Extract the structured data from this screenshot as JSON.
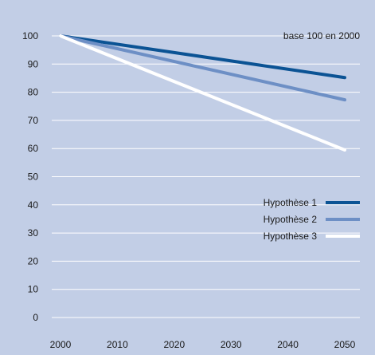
{
  "chart_data": {
    "type": "line",
    "annotation": "base 100 en 2000",
    "x": [
      2000,
      2050
    ],
    "x_ticks": [
      "2000",
      "2010",
      "2020",
      "2030",
      "2040",
      "2050"
    ],
    "y_ticks": [
      "0",
      "10",
      "20",
      "30",
      "40",
      "50",
      "60",
      "70",
      "80",
      "90",
      "100"
    ],
    "xlim": [
      2000,
      2050
    ],
    "ylim": [
      0,
      100
    ],
    "grid": true,
    "legend_position": "right",
    "series": [
      {
        "name": "Hypothèse 1",
        "values": [
          100,
          85.2
        ],
        "color": "#0b5394"
      },
      {
        "name": "Hypothèse 2",
        "values": [
          100,
          77.3
        ],
        "color": "#6d8fc5"
      },
      {
        "name": "Hypothèse 3",
        "values": [
          100,
          59.5
        ],
        "color": "#ffffff"
      }
    ],
    "background_color": "#c2cee6",
    "grid_color": "#ffffff"
  }
}
